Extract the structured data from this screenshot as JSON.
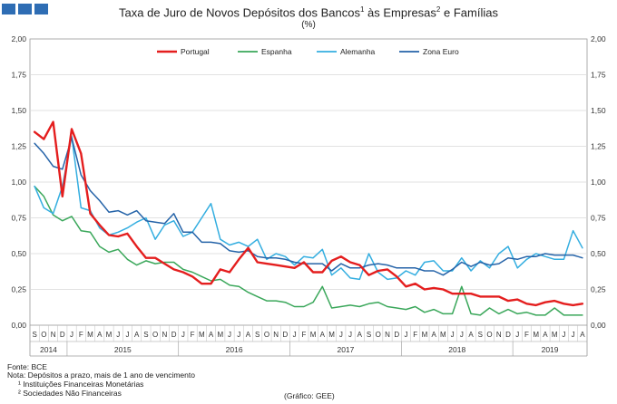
{
  "header": {
    "title_part1": "Taxa de Juro de Novos Depósitos dos Bancos",
    "sup1": "1",
    "title_part2": " às Empresas",
    "sup2": "2",
    "title_part3": " e Famílias",
    "unit": "(%)"
  },
  "colors": {
    "Portugal": "#e41e1e",
    "Espanha": "#3aa75a",
    "Alemanha": "#34aee0",
    "Zona Euro": "#2563a8",
    "logo": "#2e6db4"
  },
  "footer": {
    "source": "Fonte: BCE",
    "note": "Nota: Depósitos a prazo, mais de 1 ano de vencimento",
    "footnote1": "¹ Instituições Financeiras Monetárias",
    "footnote2": "² Sociedades Não Financeiras",
    "credit": "(Gráfico: GEE)"
  },
  "chart_data": {
    "type": "line",
    "ylim": [
      0,
      2
    ],
    "yticks": [
      "0,00",
      "0,25",
      "0,50",
      "0,75",
      "1,00",
      "1,25",
      "1,50",
      "1,75",
      "2,00"
    ],
    "ytick_values": [
      0,
      0.25,
      0.5,
      0.75,
      1.0,
      1.25,
      1.5,
      1.75,
      2.0
    ],
    "legend_position": "top",
    "x": [
      "S",
      "O",
      "N",
      "D",
      "J",
      "F",
      "M",
      "A",
      "M",
      "J",
      "J",
      "A",
      "S",
      "O",
      "N",
      "D",
      "J",
      "F",
      "M",
      "A",
      "M",
      "J",
      "J",
      "A",
      "S",
      "O",
      "N",
      "D",
      "J",
      "F",
      "M",
      "A",
      "M",
      "J",
      "J",
      "A",
      "S",
      "O",
      "N",
      "D",
      "J",
      "F",
      "M",
      "A",
      "M",
      "J",
      "J",
      "A",
      "S",
      "O",
      "N",
      "D",
      "J",
      "F",
      "M",
      "A",
      "M",
      "J",
      "J",
      "A"
    ],
    "years": [
      {
        "label": "2014",
        "months": 4
      },
      {
        "label": "2015",
        "months": 12
      },
      {
        "label": "2016",
        "months": 12
      },
      {
        "label": "2017",
        "months": 12
      },
      {
        "label": "2018",
        "months": 12
      },
      {
        "label": "2019",
        "months": 8
      }
    ],
    "series": [
      {
        "name": "Portugal",
        "values": [
          1.35,
          1.3,
          1.42,
          0.9,
          1.37,
          1.2,
          0.78,
          0.7,
          0.63,
          0.62,
          0.64,
          0.55,
          0.47,
          0.47,
          0.43,
          0.39,
          0.37,
          0.34,
          0.29,
          0.29,
          0.39,
          0.37,
          0.46,
          0.54,
          0.44,
          0.43,
          0.42,
          0.41,
          0.4,
          0.44,
          0.37,
          0.37,
          0.45,
          0.48,
          0.44,
          0.42,
          0.35,
          0.38,
          0.39,
          0.34,
          0.27,
          0.29,
          0.25,
          0.26,
          0.25,
          0.22,
          0.22,
          0.22,
          0.2,
          0.2,
          0.2,
          0.17,
          0.18,
          0.15,
          0.14,
          0.16,
          0.17,
          0.15,
          0.14,
          0.15
        ]
      },
      {
        "name": "Espanha",
        "values": [
          0.97,
          0.9,
          0.77,
          0.73,
          0.76,
          0.66,
          0.65,
          0.55,
          0.51,
          0.53,
          0.46,
          0.42,
          0.45,
          0.43,
          0.44,
          0.44,
          0.39,
          0.37,
          0.34,
          0.31,
          0.32,
          0.28,
          0.27,
          0.23,
          0.2,
          0.17,
          0.17,
          0.16,
          0.13,
          0.13,
          0.16,
          0.27,
          0.12,
          0.13,
          0.14,
          0.13,
          0.15,
          0.16,
          0.13,
          0.12,
          0.11,
          0.13,
          0.09,
          0.11,
          0.08,
          0.08,
          0.27,
          0.08,
          0.07,
          0.12,
          0.08,
          0.11,
          0.08,
          0.09,
          0.07,
          0.07,
          0.12,
          0.07,
          0.07,
          0.07
        ]
      },
      {
        "name": "Alemanha",
        "values": [
          0.97,
          0.82,
          0.78,
          0.97,
          1.32,
          0.82,
          0.8,
          0.68,
          0.63,
          0.65,
          0.68,
          0.72,
          0.75,
          0.6,
          0.7,
          0.73,
          0.62,
          0.65,
          0.75,
          0.85,
          0.6,
          0.56,
          0.58,
          0.55,
          0.6,
          0.46,
          0.5,
          0.48,
          0.42,
          0.48,
          0.47,
          0.53,
          0.35,
          0.4,
          0.33,
          0.32,
          0.5,
          0.37,
          0.32,
          0.33,
          0.38,
          0.35,
          0.44,
          0.45,
          0.38,
          0.38,
          0.47,
          0.38,
          0.45,
          0.4,
          0.5,
          0.55,
          0.4,
          0.46,
          0.5,
          0.48,
          0.46,
          0.46,
          0.66,
          0.54
        ]
      },
      {
        "name": "Zona Euro",
        "values": [
          1.27,
          1.2,
          1.11,
          1.09,
          1.31,
          1.05,
          0.94,
          0.87,
          0.79,
          0.8,
          0.77,
          0.8,
          0.73,
          0.72,
          0.71,
          0.78,
          0.65,
          0.65,
          0.58,
          0.58,
          0.57,
          0.52,
          0.51,
          0.52,
          0.48,
          0.47,
          0.47,
          0.46,
          0.44,
          0.43,
          0.43,
          0.43,
          0.38,
          0.43,
          0.4,
          0.4,
          0.42,
          0.43,
          0.42,
          0.4,
          0.4,
          0.4,
          0.38,
          0.38,
          0.35,
          0.39,
          0.44,
          0.41,
          0.44,
          0.42,
          0.43,
          0.47,
          0.46,
          0.48,
          0.48,
          0.5,
          0.49,
          0.49,
          0.49,
          0.47
        ]
      }
    ]
  }
}
